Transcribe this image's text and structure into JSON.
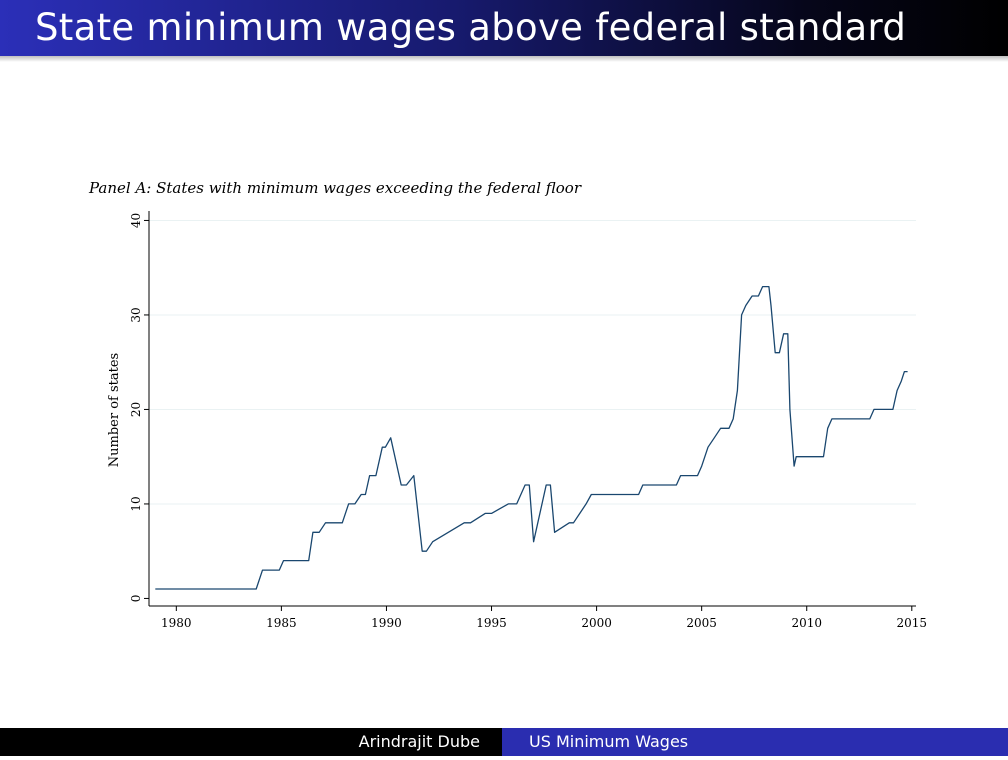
{
  "slide": {
    "title": "State minimum wages above federal standard"
  },
  "footer": {
    "author": "Arindrajit Dube",
    "topic": "US Minimum Wages"
  },
  "colors": {
    "title_bar_start": "#2b2fb8",
    "title_bar_end": "#000000",
    "footer_accent": "#2a2db0",
    "series_line": "#1a476f",
    "grid": "#eaf2f3"
  },
  "chart_data": {
    "type": "line",
    "title": "Panel A: States with minimum wages exceeding the federal floor",
    "xlabel": "",
    "ylabel": "Number of states",
    "xlim": [
      1978.7,
      2015.2
    ],
    "ylim": [
      -0.8,
      41
    ],
    "xticks": [
      1980,
      1985,
      1990,
      1995,
      2000,
      2005,
      2010,
      2015
    ],
    "yticks": [
      0,
      10,
      20,
      30,
      40
    ],
    "grid": true,
    "legend": "none",
    "series": [
      {
        "name": "",
        "x": [
          1979.0,
          1983.8,
          1984.1,
          1984.9,
          1985.1,
          1986.3,
          1986.5,
          1986.8,
          1987.1,
          1987.9,
          1988.2,
          1988.5,
          1988.8,
          1989.0,
          1989.2,
          1989.5,
          1989.8,
          1989.95,
          1990.2,
          1990.7,
          1990.95,
          1991.3,
          1991.7,
          1991.9,
          1992.2,
          1993.7,
          1994.0,
          1994.7,
          1995.0,
          1995.8,
          1996.2,
          1996.6,
          1996.8,
          1997.0,
          1997.6,
          1997.8,
          1998.0,
          1998.7,
          1998.9,
          1999.2,
          1999.5,
          1999.75,
          2002.0,
          2002.2,
          2003.8,
          2004.0,
          2004.8,
          2005.0,
          2005.3,
          2005.6,
          2005.9,
          2006.3,
          2006.5,
          2006.7,
          2006.9,
          2007.1,
          2007.4,
          2007.7,
          2007.9,
          2008.2,
          2008.3,
          2008.5,
          2008.7,
          2008.9,
          2009.1,
          2009.2,
          2009.4,
          2009.5,
          2009.7,
          2010.0,
          2010.8,
          2011.0,
          2011.2,
          2011.4,
          2011.6,
          2013.0,
          2013.2,
          2013.9,
          2014.1,
          2014.3,
          2014.5,
          2014.65,
          2014.8
        ],
        "values": [
          1,
          1,
          3,
          3,
          4,
          4,
          7,
          7,
          8,
          8,
          10,
          10,
          11,
          11,
          13,
          13,
          16,
          16,
          17,
          12,
          12,
          13,
          5,
          5,
          6,
          8,
          8,
          9,
          9,
          10,
          10,
          12,
          12,
          6,
          12,
          12,
          7,
          8,
          8,
          9,
          10,
          11,
          11,
          12,
          12,
          13,
          13,
          14,
          16,
          17,
          18,
          18,
          19,
          22,
          30,
          31,
          32,
          32,
          33,
          33,
          31,
          26,
          26,
          28,
          28,
          20,
          14,
          15,
          15,
          15,
          15,
          18,
          19,
          19,
          19,
          19,
          20,
          20,
          20,
          22,
          23,
          24,
          24
        ]
      }
    ]
  }
}
